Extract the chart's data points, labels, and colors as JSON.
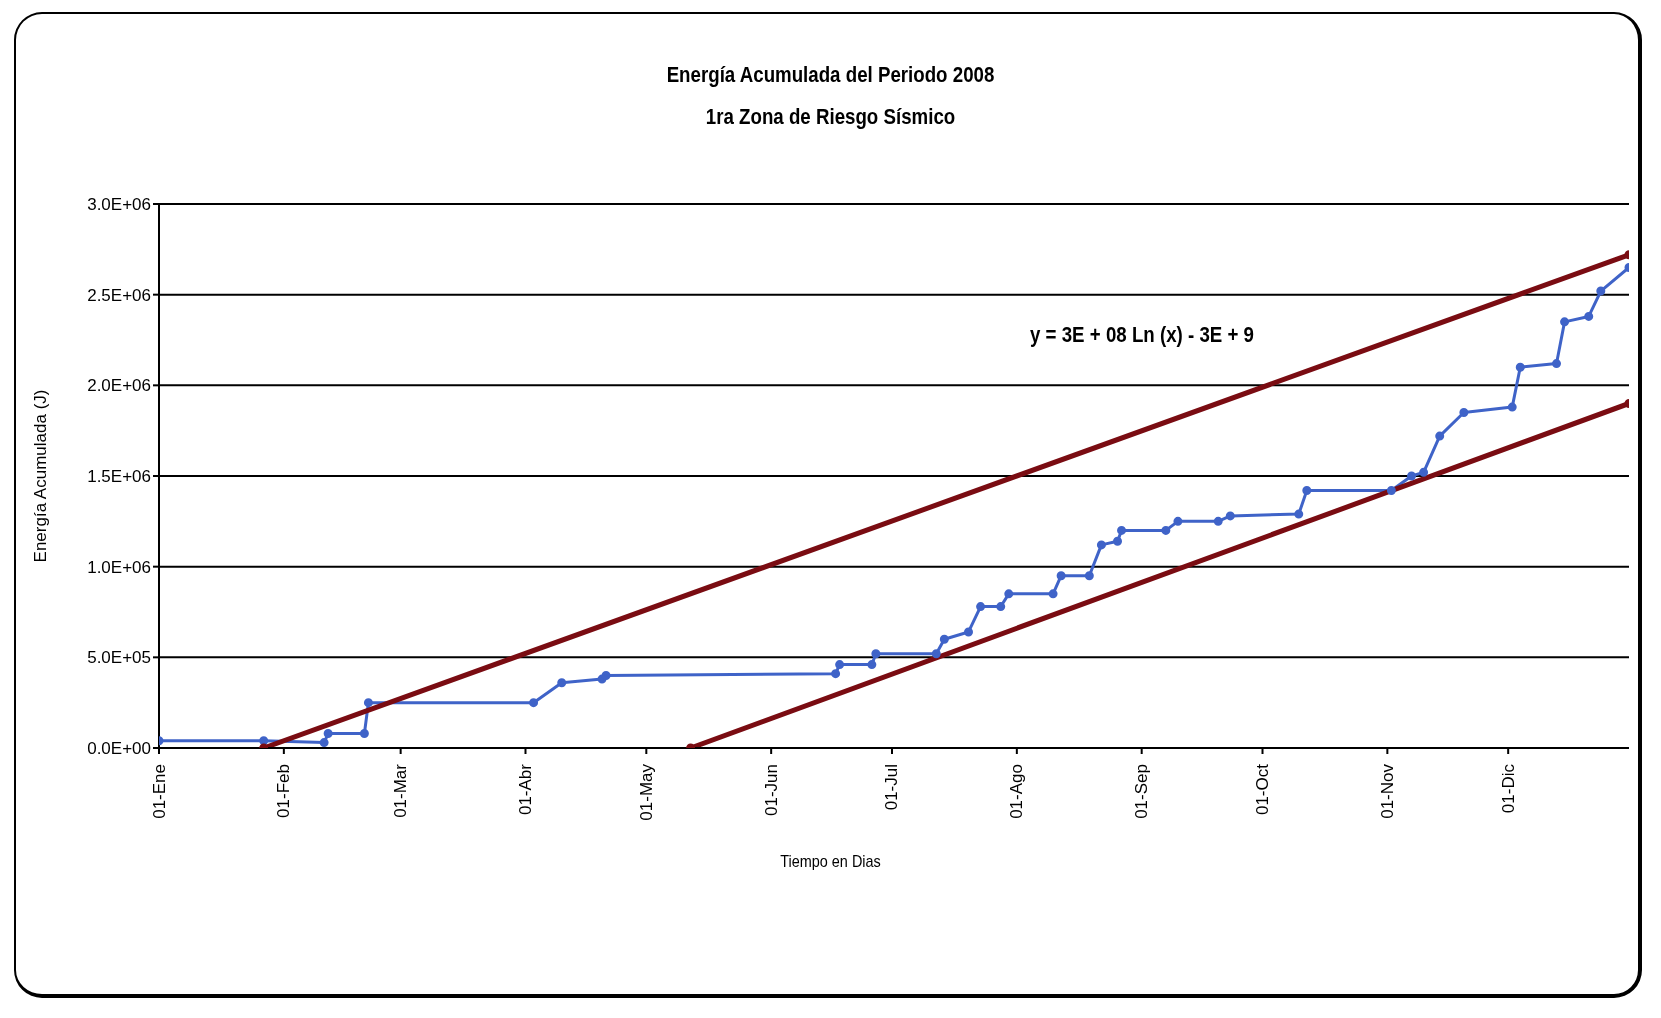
{
  "chart_data": {
    "type": "line",
    "title": "Energía Acumulada del Periodo 2008",
    "subtitle": "1ra Zona de Riesgo Sísmico",
    "xlabel": "Tiempo en Dias",
    "ylabel": "Energía Acumulada (J)",
    "annotations": [
      "y = 3E + 08 Ln (x) - 3E + 9"
    ],
    "xlim": [
      "2008-01-01",
      "2008-12-31"
    ],
    "xticks": [
      {
        "value": "2008-01-01",
        "label": "01-Ene"
      },
      {
        "value": "2008-02-01",
        "label": "01-Feb"
      },
      {
        "value": "2008-03-01",
        "label": "01-Mar"
      },
      {
        "value": "2008-04-01",
        "label": "01-Abr"
      },
      {
        "value": "2008-05-01",
        "label": "01-May"
      },
      {
        "value": "2008-06-01",
        "label": "01-Jun"
      },
      {
        "value": "2008-07-01",
        "label": "01-Jul"
      },
      {
        "value": "2008-08-01",
        "label": "01-Ago"
      },
      {
        "value": "2008-09-01",
        "label": "01-Sep"
      },
      {
        "value": "2008-10-01",
        "label": "01-Oct"
      },
      {
        "value": "2008-11-01",
        "label": "01-Nov"
      },
      {
        "value": "2008-12-01",
        "label": "01-Dic"
      }
    ],
    "ylim": [
      0,
      3000000
    ],
    "yticks": [
      {
        "value": 0,
        "label": "0.0E+00"
      },
      {
        "value": 500000,
        "label": "5.0E+05"
      },
      {
        "value": 1000000,
        "label": "1.0E+06"
      },
      {
        "value": 1500000,
        "label": "1.5E+06"
      },
      {
        "value": 2000000,
        "label": "2.0E+06"
      },
      {
        "value": 2500000,
        "label": "2.5E+06"
      },
      {
        "value": 3000000,
        "label": "3.0E+06"
      }
    ],
    "grid": "y",
    "marker": "circle",
    "series": [
      {
        "color": "#3f63c8",
        "x": [
          "2008-01-01",
          "2008-01-27",
          "2008-02-11",
          "2008-02-12",
          "2008-02-21",
          "2008-02-22",
          "2008-04-03",
          "2008-04-10",
          "2008-04-20",
          "2008-04-21",
          "2008-06-17",
          "2008-06-18",
          "2008-06-26",
          "2008-06-27",
          "2008-07-12",
          "2008-07-14",
          "2008-07-20",
          "2008-07-23",
          "2008-07-28",
          "2008-07-30",
          "2008-08-10",
          "2008-08-12",
          "2008-08-19",
          "2008-08-22",
          "2008-08-26",
          "2008-08-27",
          "2008-09-07",
          "2008-09-10",
          "2008-09-20",
          "2008-09-23",
          "2008-10-10",
          "2008-10-12",
          "2008-11-02",
          "2008-11-07",
          "2008-11-10",
          "2008-11-14",
          "2008-11-20",
          "2008-12-02",
          "2008-12-04",
          "2008-12-13",
          "2008-12-15",
          "2008-12-21",
          "2008-12-24",
          "2008-12-31"
        ],
        "values": [
          40000,
          40000,
          30000,
          80000,
          80000,
          250000,
          250000,
          360000,
          380000,
          400000,
          410000,
          460000,
          460000,
          520000,
          520000,
          600000,
          640000,
          780000,
          780000,
          850000,
          850000,
          950000,
          950000,
          1120000,
          1140000,
          1200000,
          1200000,
          1250000,
          1250000,
          1280000,
          1290000,
          1420000,
          1420000,
          1500000,
          1520000,
          1720000,
          1850000,
          1880000,
          2100000,
          2120000,
          2350000,
          2380000,
          2520000,
          2650000
        ]
      },
      {
        "color": "#7a0c12",
        "x": [
          "2008-01-27",
          "2008-12-31"
        ],
        "values": [
          0,
          2720000
        ]
      },
      {
        "color": "#7a0c12",
        "x": [
          "2008-05-12",
          "2008-12-31"
        ],
        "values": [
          0,
          1900000
        ]
      }
    ]
  }
}
